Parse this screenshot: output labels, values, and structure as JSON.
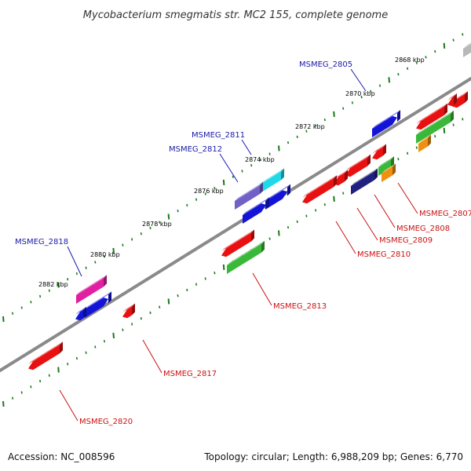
{
  "title": "Mycobacterium smegmatis str. MC2 155, complete genome",
  "footer": {
    "accession": "Accession: NC_008596",
    "summary": "Topology: circular; Length: 6,988,209 bp; Genes: 6,770"
  },
  "ticks": [
    {
      "label": "2868 kbp"
    },
    {
      "label": "2870 kbp"
    },
    {
      "label": "2872 kbp"
    },
    {
      "label": "2874 kbp"
    },
    {
      "label": "2876 kbp"
    },
    {
      "label": "2878 kbp"
    },
    {
      "label": "2880 kbp"
    },
    {
      "label": "2882 kbp"
    }
  ],
  "gene_labels": {
    "forward": [
      "MSMEG_2805",
      "MSMEG_2811",
      "MSMEG_2812",
      "MSMEG_2818"
    ],
    "reverse": [
      "MSMEG_2807",
      "MSMEG_2808",
      "MSMEG_2809",
      "MSMEG_2810",
      "MSMEG_2813",
      "MSMEG_2817",
      "MSMEG_2820"
    ]
  },
  "colors": {
    "backbone": "#8a8a8a",
    "tick": "#1a7a1a",
    "forward_label": "#1a1aa8",
    "reverse_label": "#cc1111",
    "gene_red": "#e81010",
    "gene_blue": "#1414d8",
    "gene_green": "#3ab83a",
    "gene_cyan": "#20d8e8",
    "gene_purple": "#7060c8",
    "gene_magenta": "#e020a0",
    "gene_orange": "#f09010",
    "gene_navy": "#202080",
    "gene_grey": "#b8b8b8"
  }
}
